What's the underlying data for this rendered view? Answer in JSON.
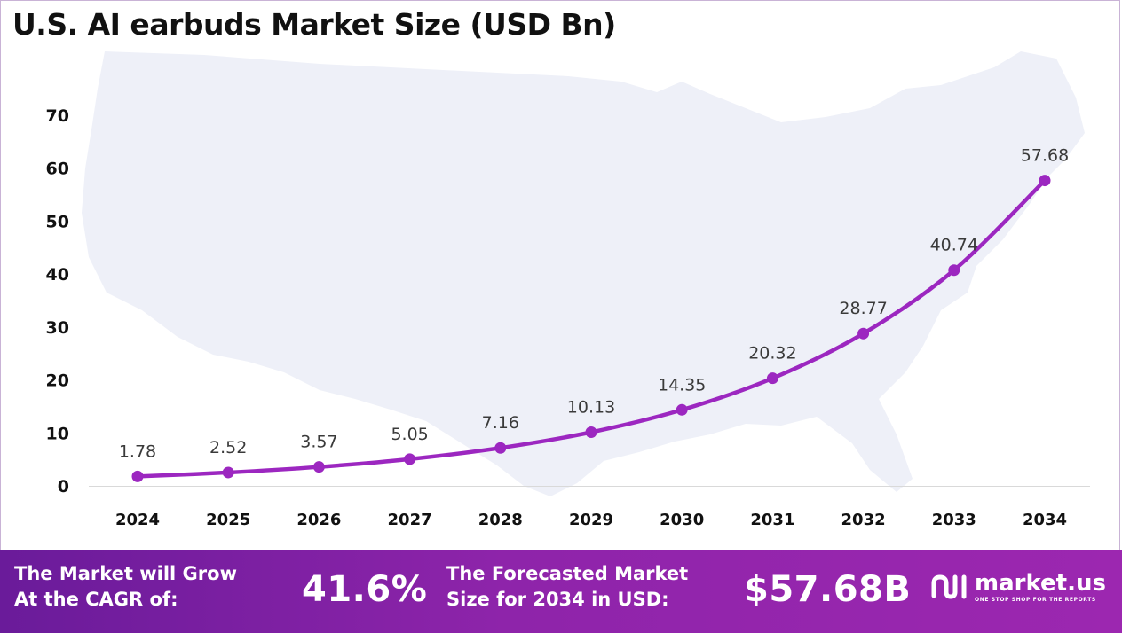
{
  "chart_data": {
    "type": "line",
    "title": "U.S. AI earbuds Market Size (USD Bn)",
    "categories": [
      "2024",
      "2025",
      "2026",
      "2027",
      "2028",
      "2029",
      "2030",
      "2031",
      "2032",
      "2033",
      "2034"
    ],
    "values": [
      1.78,
      2.52,
      3.57,
      5.05,
      7.16,
      10.13,
      14.35,
      20.32,
      28.77,
      40.74,
      57.68
    ],
    "data_labels": [
      "1.78",
      "2.52",
      "3.57",
      "5.05",
      "7.16",
      "10.13",
      "14.35",
      "20.32",
      "28.77",
      "40.74",
      "57.68"
    ],
    "y_ticks": [
      0,
      10,
      20,
      30,
      40,
      50,
      60,
      70
    ],
    "ylim": [
      0,
      70
    ],
    "xlabel": "",
    "ylabel": "",
    "grid": false,
    "series_color": "#9c27c0",
    "background_graphic": "us-map-silhouette"
  },
  "footer": {
    "cagr_label": [
      "The Market will Grow",
      "At the CAGR of:"
    ],
    "cagr_value": "41.6%",
    "forecast_label": [
      "The Forecasted Market",
      "Size for 2034 in USD:"
    ],
    "forecast_value": "$57.68B",
    "brand_name": "market.us",
    "brand_tagline": "ONE STOP SHOP FOR THE REPORTS",
    "background_color": "#7b1fa2"
  }
}
